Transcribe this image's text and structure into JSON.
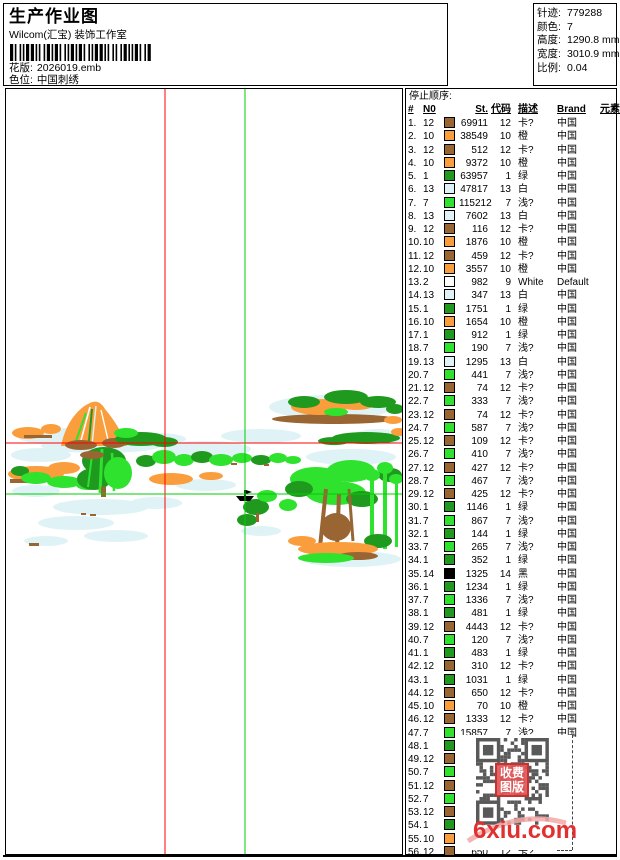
{
  "header": {
    "title": "生产作业图",
    "subtitle": "Wilcom(汇宝) 装饰工作室",
    "pattern_label": "花版:",
    "pattern_value": "2026019.emb",
    "colorway_label": "色位:",
    "colorway_value": "中国刺绣"
  },
  "stats": [
    {
      "label": "针迹:",
      "value": "779288"
    },
    {
      "label": "颜色:",
      "value": "7"
    },
    {
      "label": "高度:",
      "value": "1290.8 mm"
    },
    {
      "label": "宽度:",
      "value": "3010.9 mm"
    },
    {
      "label": "比例:",
      "value": "0.04"
    }
  ],
  "stop_sequence": {
    "title": "停止顺序:",
    "columns": [
      "#",
      "N0",
      "",
      "St.",
      "代码",
      "描述",
      "Brand",
      "元素"
    ],
    "rows": [
      {
        "i": "1.",
        "n": "12",
        "c": "#996633",
        "st": "69911",
        "cd": "12",
        "d": "卡?",
        "b": "中国",
        "e": ""
      },
      {
        "i": "2.",
        "n": "10",
        "c": "#FA9E3D",
        "st": "38549",
        "cd": "10",
        "d": "橙",
        "b": "中国",
        "e": ""
      },
      {
        "i": "3.",
        "n": "12",
        "c": "#996633",
        "st": "512",
        "cd": "12",
        "d": "卡?",
        "b": "中国",
        "e": ""
      },
      {
        "i": "4.",
        "n": "10",
        "c": "#FA9E3D",
        "st": "9372",
        "cd": "10",
        "d": "橙",
        "b": "中国",
        "e": ""
      },
      {
        "i": "5.",
        "n": "1",
        "c": "#1F9A1F",
        "st": "63957",
        "cd": "1",
        "d": "绿",
        "b": "中国",
        "e": ""
      },
      {
        "i": "6.",
        "n": "13",
        "c": "#DFF3F6",
        "st": "47817",
        "cd": "13",
        "d": "白",
        "b": "中国",
        "e": ""
      },
      {
        "i": "7.",
        "n": "7",
        "c": "#2EE22E",
        "st": "115212",
        "cd": "7",
        "d": "浅?",
        "b": "中国",
        "e": ""
      },
      {
        "i": "8.",
        "n": "13",
        "c": "#DFF3F6",
        "st": "7602",
        "cd": "13",
        "d": "白",
        "b": "中国",
        "e": ""
      },
      {
        "i": "9.",
        "n": "12",
        "c": "#996633",
        "st": "116",
        "cd": "12",
        "d": "卡?",
        "b": "中国",
        "e": ""
      },
      {
        "i": "10.",
        "n": "10",
        "c": "#FA9E3D",
        "st": "1876",
        "cd": "10",
        "d": "橙",
        "b": "中国",
        "e": ""
      },
      {
        "i": "11.",
        "n": "12",
        "c": "#996633",
        "st": "459",
        "cd": "12",
        "d": "卡?",
        "b": "中国",
        "e": ""
      },
      {
        "i": "12.",
        "n": "10",
        "c": "#FA9E3D",
        "st": "3557",
        "cd": "10",
        "d": "橙",
        "b": "中国",
        "e": ""
      },
      {
        "i": "13.",
        "n": "2",
        "c": "#FFFFFF",
        "st": "982",
        "cd": "9",
        "d": "White",
        "b": "Default",
        "e": ""
      },
      {
        "i": "14.",
        "n": "13",
        "c": "#DFF3F6",
        "st": "347",
        "cd": "13",
        "d": "白",
        "b": "中国",
        "e": ""
      },
      {
        "i": "15.",
        "n": "1",
        "c": "#1F9A1F",
        "st": "1751",
        "cd": "1",
        "d": "绿",
        "b": "中国",
        "e": ""
      },
      {
        "i": "16.",
        "n": "10",
        "c": "#FA9E3D",
        "st": "1654",
        "cd": "10",
        "d": "橙",
        "b": "中国",
        "e": ""
      },
      {
        "i": "17.",
        "n": "1",
        "c": "#1F9A1F",
        "st": "912",
        "cd": "1",
        "d": "绿",
        "b": "中国",
        "e": ""
      },
      {
        "i": "18.",
        "n": "7",
        "c": "#2EE22E",
        "st": "190",
        "cd": "7",
        "d": "浅?",
        "b": "中国",
        "e": ""
      },
      {
        "i": "19.",
        "n": "13",
        "c": "#DFF3F6",
        "st": "1295",
        "cd": "13",
        "d": "白",
        "b": "中国",
        "e": ""
      },
      {
        "i": "20.",
        "n": "7",
        "c": "#2EE22E",
        "st": "441",
        "cd": "7",
        "d": "浅?",
        "b": "中国",
        "e": ""
      },
      {
        "i": "21.",
        "n": "12",
        "c": "#996633",
        "st": "74",
        "cd": "12",
        "d": "卡?",
        "b": "中国",
        "e": ""
      },
      {
        "i": "22.",
        "n": "7",
        "c": "#2EE22E",
        "st": "333",
        "cd": "7",
        "d": "浅?",
        "b": "中国",
        "e": ""
      },
      {
        "i": "23.",
        "n": "12",
        "c": "#996633",
        "st": "74",
        "cd": "12",
        "d": "卡?",
        "b": "中国",
        "e": ""
      },
      {
        "i": "24.",
        "n": "7",
        "c": "#2EE22E",
        "st": "587",
        "cd": "7",
        "d": "浅?",
        "b": "中国",
        "e": ""
      },
      {
        "i": "25.",
        "n": "12",
        "c": "#996633",
        "st": "109",
        "cd": "12",
        "d": "卡?",
        "b": "中国",
        "e": ""
      },
      {
        "i": "26.",
        "n": "7",
        "c": "#2EE22E",
        "st": "410",
        "cd": "7",
        "d": "浅?",
        "b": "中国",
        "e": ""
      },
      {
        "i": "27.",
        "n": "12",
        "c": "#996633",
        "st": "427",
        "cd": "12",
        "d": "卡?",
        "b": "中国",
        "e": ""
      },
      {
        "i": "28.",
        "n": "7",
        "c": "#2EE22E",
        "st": "467",
        "cd": "7",
        "d": "浅?",
        "b": "中国",
        "e": ""
      },
      {
        "i": "29.",
        "n": "12",
        "c": "#996633",
        "st": "425",
        "cd": "12",
        "d": "卡?",
        "b": "中国",
        "e": ""
      },
      {
        "i": "30.",
        "n": "1",
        "c": "#1F9A1F",
        "st": "1146",
        "cd": "1",
        "d": "绿",
        "b": "中国",
        "e": ""
      },
      {
        "i": "31.",
        "n": "7",
        "c": "#2EE22E",
        "st": "867",
        "cd": "7",
        "d": "浅?",
        "b": "中国",
        "e": ""
      },
      {
        "i": "32.",
        "n": "1",
        "c": "#1F9A1F",
        "st": "144",
        "cd": "1",
        "d": "绿",
        "b": "中国",
        "e": ""
      },
      {
        "i": "33.",
        "n": "7",
        "c": "#2EE22E",
        "st": "265",
        "cd": "7",
        "d": "浅?",
        "b": "中国",
        "e": ""
      },
      {
        "i": "34.",
        "n": "1",
        "c": "#1F9A1F",
        "st": "352",
        "cd": "1",
        "d": "绿",
        "b": "中国",
        "e": ""
      },
      {
        "i": "35.",
        "n": "14",
        "c": "#000000",
        "st": "1325",
        "cd": "14",
        "d": "黑",
        "b": "中国",
        "e": ""
      },
      {
        "i": "36.",
        "n": "1",
        "c": "#1F9A1F",
        "st": "1234",
        "cd": "1",
        "d": "绿",
        "b": "中国",
        "e": ""
      },
      {
        "i": "37.",
        "n": "7",
        "c": "#2EE22E",
        "st": "1336",
        "cd": "7",
        "d": "浅?",
        "b": "中国",
        "e": ""
      },
      {
        "i": "38.",
        "n": "1",
        "c": "#1F9A1F",
        "st": "481",
        "cd": "1",
        "d": "绿",
        "b": "中国",
        "e": ""
      },
      {
        "i": "39.",
        "n": "12",
        "c": "#996633",
        "st": "4443",
        "cd": "12",
        "d": "卡?",
        "b": "中国",
        "e": ""
      },
      {
        "i": "40.",
        "n": "7",
        "c": "#2EE22E",
        "st": "120",
        "cd": "7",
        "d": "浅?",
        "b": "中国",
        "e": ""
      },
      {
        "i": "41.",
        "n": "1",
        "c": "#1F9A1F",
        "st": "483",
        "cd": "1",
        "d": "绿",
        "b": "中国",
        "e": ""
      },
      {
        "i": "42.",
        "n": "12",
        "c": "#996633",
        "st": "310",
        "cd": "12",
        "d": "卡?",
        "b": "中国",
        "e": ""
      },
      {
        "i": "43.",
        "n": "1",
        "c": "#1F9A1F",
        "st": "1031",
        "cd": "1",
        "d": "绿",
        "b": "中国",
        "e": ""
      },
      {
        "i": "44.",
        "n": "12",
        "c": "#996633",
        "st": "650",
        "cd": "12",
        "d": "卡?",
        "b": "中国",
        "e": ""
      },
      {
        "i": "45.",
        "n": "10",
        "c": "#FA9E3D",
        "st": "70",
        "cd": "10",
        "d": "橙",
        "b": "中国",
        "e": ""
      },
      {
        "i": "46.",
        "n": "12",
        "c": "#996633",
        "st": "1333",
        "cd": "12",
        "d": "卡?",
        "b": "中国",
        "e": ""
      },
      {
        "i": "47.",
        "n": "7",
        "c": "#2EE22E",
        "st": "15857",
        "cd": "7",
        "d": "浅?",
        "b": "中国",
        "e": ""
      },
      {
        "i": "48.",
        "n": "1",
        "c": "#1F9A1F",
        "st": "",
        "cd": "",
        "d": "",
        "b": "",
        "e": ""
      },
      {
        "i": "49.",
        "n": "12",
        "c": "#996633",
        "st": "",
        "cd": "",
        "d": "",
        "b": "",
        "e": ""
      },
      {
        "i": "50.",
        "n": "7",
        "c": "#2EE22E",
        "st": "",
        "cd": "",
        "d": "",
        "b": "",
        "e": ""
      },
      {
        "i": "51.",
        "n": "12",
        "c": "#996633",
        "st": "",
        "cd": "",
        "d": "",
        "b": "",
        "e": ""
      },
      {
        "i": "52.",
        "n": "7",
        "c": "#2EE22E",
        "st": "",
        "cd": "",
        "d": "",
        "b": "",
        "e": ""
      },
      {
        "i": "53.",
        "n": "12",
        "c": "#996633",
        "st": "",
        "cd": "",
        "d": "",
        "b": "",
        "e": ""
      },
      {
        "i": "54.",
        "n": "1",
        "c": "#1F9A1F",
        "st": "",
        "cd": "",
        "d": "",
        "b": "",
        "e": ""
      },
      {
        "i": "55.",
        "n": "10",
        "c": "#FA9E3D",
        "st": "",
        "cd": "",
        "d": "",
        "b": "",
        "e": ""
      },
      {
        "i": "56.",
        "n": "12",
        "c": "#996633",
        "st": "650",
        "cd": "12",
        "d": "卡?",
        "b": "",
        "e": ""
      }
    ]
  },
  "watermark": {
    "site": "6xiu.com",
    "stamp_line1": "收费",
    "stamp_line2": "图版"
  },
  "palette": {
    "brown": "#996633",
    "orange": "#FA9E3D",
    "green": "#1F9A1F",
    "bright_green": "#2EE22E",
    "pale_blue": "#DFF3F6",
    "white": "#FFFFFF",
    "black": "#000000",
    "crosshair_red": "#FF0000",
    "crosshair_green": "#00CC00",
    "watermark_red": "#E03030"
  }
}
